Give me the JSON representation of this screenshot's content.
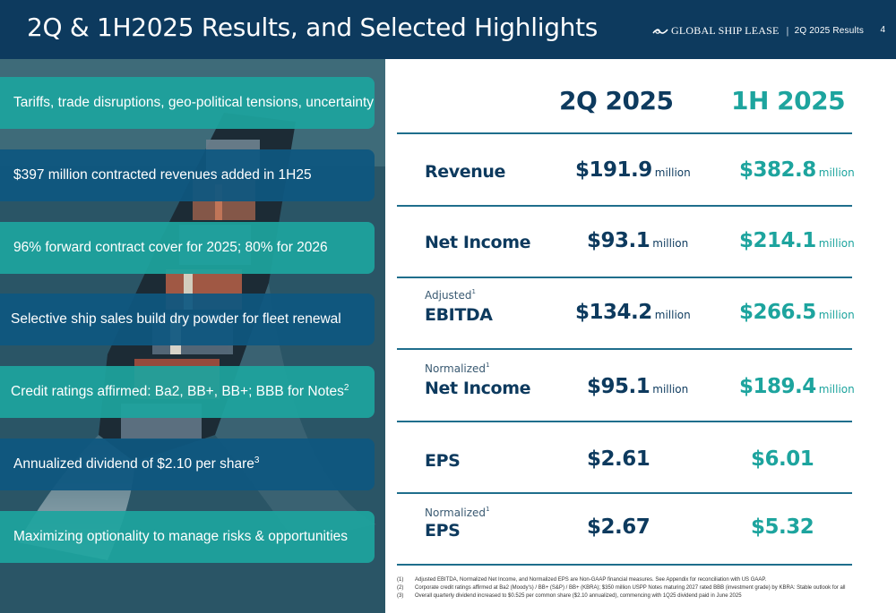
{
  "header": {
    "title": "2Q & 1H2025 Results, and Selected Highlights",
    "logo_text": "GLOBAL SHIP LEASE",
    "separator": "|",
    "results_label": "2Q 2025 Results",
    "page_number": "4"
  },
  "highlights": [
    {
      "text": "Tariffs, trade disruptions, geo-political tensions, uncertainty",
      "style": "teal"
    },
    {
      "text": "$397 million contracted revenues added in 1H25",
      "style": "navy"
    },
    {
      "text": "96% forward contract cover for 2025; 80% for 2026",
      "style": "teal"
    },
    {
      "text": "Selective ship sales build dry powder for fleet renewal",
      "style": "navy"
    },
    {
      "text": "Credit ratings affirmed: Ba2, BB+, BB+; BBB for Notes",
      "sup": "2",
      "style": "teal"
    },
    {
      "text": "Annualized dividend of $2.10 per share",
      "sup": "3",
      "style": "navy"
    },
    {
      "text": "Maximizing optionality to manage risks & opportunities",
      "style": "teal"
    }
  ],
  "table": {
    "col_2q": "2Q 2025",
    "col_1h": "1H 2025",
    "rows": [
      {
        "pre": "",
        "pre_sup": "",
        "label": "Revenue",
        "v2q": "$191.9",
        "u2q": "million",
        "v1h": "$382.8",
        "u1h": "million"
      },
      {
        "pre": "",
        "pre_sup": "",
        "label": "Net Income",
        "v2q": "$93.1",
        "u2q": "million",
        "v1h": "$214.1",
        "u1h": "million"
      },
      {
        "pre": "Adjusted",
        "pre_sup": "1",
        "label": "EBITDA",
        "v2q": "$134.2",
        "u2q": "million",
        "v1h": "$266.5",
        "u1h": "million"
      },
      {
        "pre": "Normalized",
        "pre_sup": "1",
        "label": "Net Income",
        "v2q": "$95.1",
        "u2q": "million",
        "v1h": "$189.4",
        "u1h": "million"
      },
      {
        "pre": "",
        "pre_sup": "",
        "label": "EPS",
        "v2q": "$2.61",
        "u2q": "",
        "v1h": "$6.01",
        "u1h": ""
      },
      {
        "pre": "Normalized",
        "pre_sup": "1",
        "label": "EPS",
        "v2q": "$2.67",
        "u2q": "",
        "v1h": "$5.32",
        "u1h": ""
      }
    ]
  },
  "footnotes": [
    {
      "num": "(1)",
      "text": "Adjusted EBITDA, Normalized Net Income, and Normalized EPS are Non-GAAP financial measures. See Appendix for reconciliation with US GAAP."
    },
    {
      "num": "(2)",
      "text": "Corporate credit ratings affirmed at Ba2 (Moody's) / BB+ (S&P) / BB+ (KBRA); $350 million USPP Notes maturing 2027 rated BBB (investment grade) by KBRA: Stable outlook for all"
    },
    {
      "num": "(3)",
      "text": "Overall quarterly dividend increased to $0.525 per common share ($2.10 annualized), commencing with 1Q25 dividend paid in June 2025"
    }
  ],
  "colors": {
    "navy": "#0d3a5e",
    "teal": "#1da49e",
    "banner_navy": "#0e5780",
    "rule": "#1f6e8c"
  }
}
